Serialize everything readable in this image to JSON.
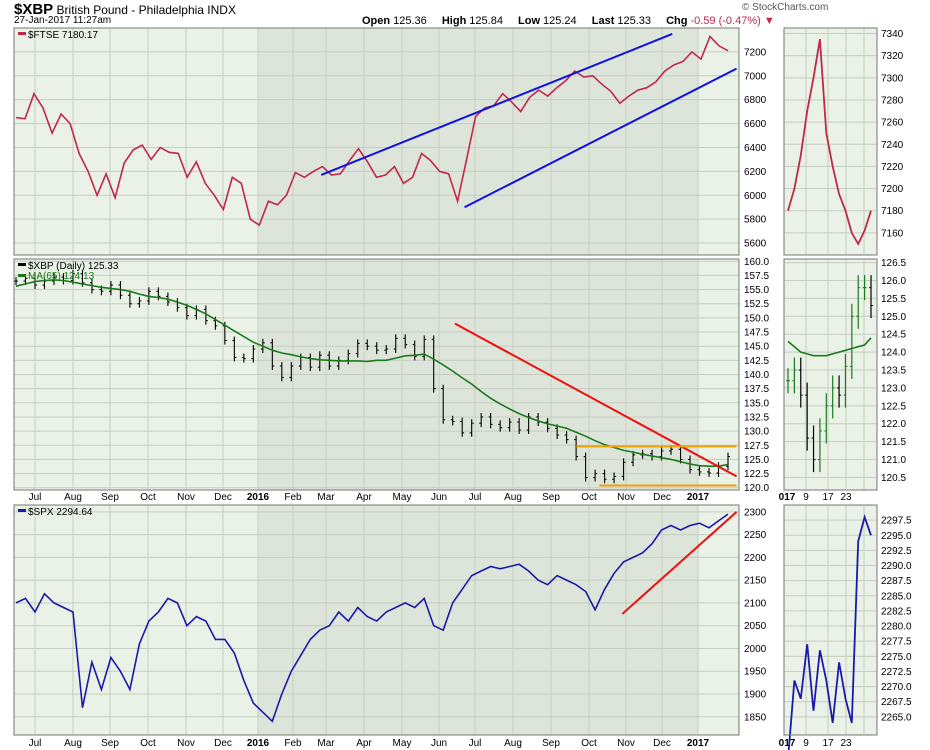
{
  "header": {
    "symbol": "$XBP",
    "name": "British Pound - Philadelphia",
    "exchange": "INDX",
    "date": "27-Jan-2017 11:27am",
    "brand": "© StockCharts.com",
    "quote": {
      "open_label": "Open",
      "open": "125.36",
      "high_label": "High",
      "high": "125.84",
      "low_label": "Low",
      "low": "125.24",
      "last_label": "Last",
      "last": "125.33",
      "chg_label": "Chg",
      "chg": "-0.59 (-0.47%)"
    }
  },
  "colors": {
    "ftse": "#c0284a",
    "xbp": "#000000",
    "ma": "#1b7a1b",
    "spx": "#1a1aa8",
    "trend_blue": "#1010e0",
    "trend_red": "#ee1010",
    "support_orange": "#f0a000",
    "panel_bg": "#eaf1e6",
    "shade_bg": "#dde5da"
  },
  "chart_data": [
    {
      "panel": "FTSE",
      "type": "line",
      "legend": "$FTSE 7180.17",
      "ylim": [
        5500,
        7400
      ],
      "yticks": [
        5600,
        5800,
        6000,
        6200,
        6400,
        6600,
        6800,
        7000,
        7200
      ],
      "x_month_labels": [
        "Jul",
        "Aug",
        "Sep",
        "Oct",
        "Nov",
        "Dec",
        "2016",
        "Feb",
        "Mar",
        "Apr",
        "May",
        "Jun",
        "Jul",
        "Aug",
        "Sep",
        "Oct",
        "Nov",
        "Dec",
        "2017"
      ],
      "values": [
        6650,
        6640,
        6850,
        6730,
        6520,
        6680,
        6600,
        6350,
        6200,
        6000,
        6180,
        5980,
        6270,
        6380,
        6420,
        6300,
        6400,
        6360,
        6350,
        6150,
        6280,
        6100,
        6000,
        5880,
        6150,
        6100,
        5800,
        5750,
        5950,
        5920,
        6000,
        6190,
        6150,
        6200,
        6240,
        6170,
        6180,
        6290,
        6390,
        6280,
        6150,
        6170,
        6240,
        6100,
        6150,
        6350,
        6290,
        6200,
        6180,
        5950,
        6300,
        6660,
        6730,
        6750,
        6850,
        6780,
        6700,
        6820,
        6880,
        6830,
        6900,
        6960,
        7040,
        6990,
        7000,
        6930,
        6870,
        6770,
        6830,
        6880,
        6900,
        6950,
        7040,
        7090,
        7120,
        7200,
        7140,
        7330,
        7250,
        7210
      ],
      "trendlines": [
        {
          "x1": "2016-03-01",
          "y1": 6170,
          "x2": "2016-12-15",
          "y2": 7350
        },
        {
          "x1": "2016-06-27",
          "y1": 5900,
          "x2": "2017-02-06",
          "y2": 7060
        }
      ],
      "zoom": {
        "ylim": [
          7140,
          7345
        ],
        "yticks": [
          7160,
          7180,
          7200,
          7220,
          7240,
          7260,
          7280,
          7300,
          7320,
          7340
        ],
        "values": [
          7180,
          7200,
          7230,
          7270,
          7300,
          7335,
          7250,
          7220,
          7195,
          7180,
          7160,
          7150,
          7162,
          7180
        ]
      }
    },
    {
      "panel": "XBP",
      "type": "ohlc",
      "legend": "$XBP (Daily) 125.33",
      "ma_legend": "MA(65) 124.13",
      "ylim": [
        119.6,
        160.4
      ],
      "yticks": [
        120.0,
        122.5,
        125.0,
        127.5,
        130.0,
        132.5,
        135.0,
        137.5,
        140.0,
        142.5,
        145.0,
        147.5,
        150.0,
        152.5,
        155.0,
        157.5,
        160.0
      ],
      "x_month_labels": [
        "Jul",
        "Aug",
        "Sep",
        "Oct",
        "Nov",
        "Dec",
        "2016",
        "Feb",
        "Mar",
        "Apr",
        "May",
        "Jun",
        "Jul",
        "Aug",
        "Sep",
        "Oct",
        "Nov",
        "Dec",
        "2017"
      ],
      "values": [
        156.5,
        157.0,
        155.8,
        156.5,
        157.2,
        156.6,
        157.8,
        156.2,
        155.0,
        154.7,
        155.8,
        154.0,
        152.5,
        153.0,
        154.7,
        153.8,
        152.8,
        151.8,
        150.4,
        151.5,
        149.5,
        148.6,
        146.0,
        143.0,
        142.8,
        144.5,
        145.6,
        141.5,
        139.5,
        141.5,
        143.0,
        141.3,
        143.4,
        141.5,
        142.5,
        143.7,
        145.5,
        145.0,
        144.3,
        144.5,
        146.4,
        145.3,
        143.2,
        146.2,
        137.5,
        132.0,
        131.7,
        129.7,
        131.4,
        132.5,
        131.2,
        130.6,
        131.6,
        130.2,
        132.5,
        131.6,
        130.5,
        129.3,
        128.5,
        125.5,
        121.8,
        122.5,
        121.5,
        122.0,
        124.5,
        125.8,
        126.0,
        125.5,
        126.5,
        126.8,
        125.0,
        123.2,
        122.8,
        122.6,
        123.8,
        125.5
      ],
      "ma_values": [
        155.6,
        156.0,
        156.4,
        156.6,
        156.7,
        156.6,
        156.3,
        156.0,
        155.7,
        155.4,
        155.2,
        155.0,
        154.7,
        154.2,
        153.8,
        153.6,
        153.3,
        152.8,
        152.2,
        151.5,
        150.7,
        149.7,
        148.7,
        147.7,
        146.7,
        145.7,
        145.0,
        144.3,
        143.8,
        143.5,
        143.1,
        142.8,
        142.6,
        142.5,
        142.4,
        142.4,
        142.4,
        142.3,
        142.5,
        142.5,
        142.9,
        143.3,
        143.4,
        143.6,
        142.7,
        141.7,
        140.6,
        139.4,
        138.3,
        137.0,
        135.8,
        134.8,
        133.9,
        133.1,
        132.4,
        131.8,
        131.3,
        130.9,
        130.5,
        129.8,
        129.1,
        128.3,
        127.6,
        127.1,
        126.6,
        126.3,
        125.9,
        125.6,
        125.3,
        125.0,
        124.6,
        124.2,
        123.9,
        123.8,
        123.8,
        124.1
      ],
      "trendlines": [
        {
          "color": "red",
          "x1": "2016-06-19",
          "y1": 149.0,
          "x2": "2017-02-06",
          "y2": 122.0
        },
        {
          "color": "orange",
          "x1": "2016-09-27",
          "y1": 127.3,
          "x2": "2017-02-06",
          "y2": 127.3
        },
        {
          "color": "orange",
          "x1": "2016-10-16",
          "y1": 120.4,
          "x2": "2017-02-06",
          "y2": 120.4
        }
      ],
      "zoom": {
        "ylim": [
          120.15,
          126.6
        ],
        "yticks": [
          120.5,
          121.0,
          121.5,
          122.0,
          122.5,
          123.0,
          123.5,
          124.0,
          124.5,
          125.0,
          125.5,
          126.0,
          126.5
        ],
        "x_labels": [
          "017",
          "9",
          "17",
          "23"
        ],
        "closes": [
          123.2,
          123.5,
          122.8,
          121.6,
          121.0,
          121.8,
          122.5,
          123.0,
          122.8,
          123.6,
          125.0,
          125.8,
          125.8,
          125.3
        ],
        "ma_values": [
          124.3,
          124.15,
          124.0,
          123.95,
          123.9,
          123.9,
          123.9,
          123.95,
          124.0,
          124.05,
          124.1,
          124.15,
          124.2,
          124.4
        ]
      }
    },
    {
      "panel": "SPX",
      "type": "line",
      "legend": "$SPX 2294.64",
      "ylim": [
        1810,
        2315
      ],
      "yticks": [
        1850,
        1900,
        1950,
        2000,
        2050,
        2100,
        2150,
        2200,
        2250,
        2300
      ],
      "x_month_labels": [
        "Jul",
        "Aug",
        "Sep",
        "Oct",
        "Nov",
        "Dec",
        "2016",
        "Feb",
        "Mar",
        "Apr",
        "May",
        "Jun",
        "Jul",
        "Aug",
        "Sep",
        "Oct",
        "Nov",
        "Dec",
        "2017"
      ],
      "values": [
        2100,
        2110,
        2080,
        2120,
        2100,
        2090,
        2080,
        1870,
        1970,
        1910,
        1980,
        1950,
        1910,
        2010,
        2060,
        2080,
        2110,
        2100,
        2050,
        2070,
        2060,
        2020,
        2020,
        1990,
        1930,
        1880,
        1860,
        1840,
        1900,
        1950,
        1985,
        2020,
        2040,
        2050,
        2080,
        2060,
        2090,
        2070,
        2060,
        2080,
        2090,
        2100,
        2090,
        2110,
        2050,
        2040,
        2100,
        2130,
        2160,
        2170,
        2180,
        2175,
        2180,
        2185,
        2170,
        2150,
        2140,
        2160,
        2150,
        2140,
        2125,
        2085,
        2130,
        2165,
        2190,
        2200,
        2210,
        2230,
        2260,
        2270,
        2260,
        2270,
        2275,
        2265,
        2280,
        2295
      ],
      "trendlines": [
        {
          "x1": "2016-11-04",
          "y1": 2076,
          "x2": "2017-02-06",
          "y2": 2300
        }
      ],
      "zoom": {
        "ylim": [
          2262,
          2300
        ],
        "yticks": [
          2265.0,
          2267.5,
          2270.0,
          2272.5,
          2275.0,
          2277.5,
          2280.0,
          2282.5,
          2285.0,
          2287.5,
          2290.0,
          2292.5,
          2295.0,
          2297.5
        ],
        "values": [
          2258,
          2271,
          2268,
          2277,
          2266,
          2276,
          2271,
          2264,
          2274,
          2268,
          2264,
          2294,
          2298,
          2295
        ]
      }
    }
  ]
}
